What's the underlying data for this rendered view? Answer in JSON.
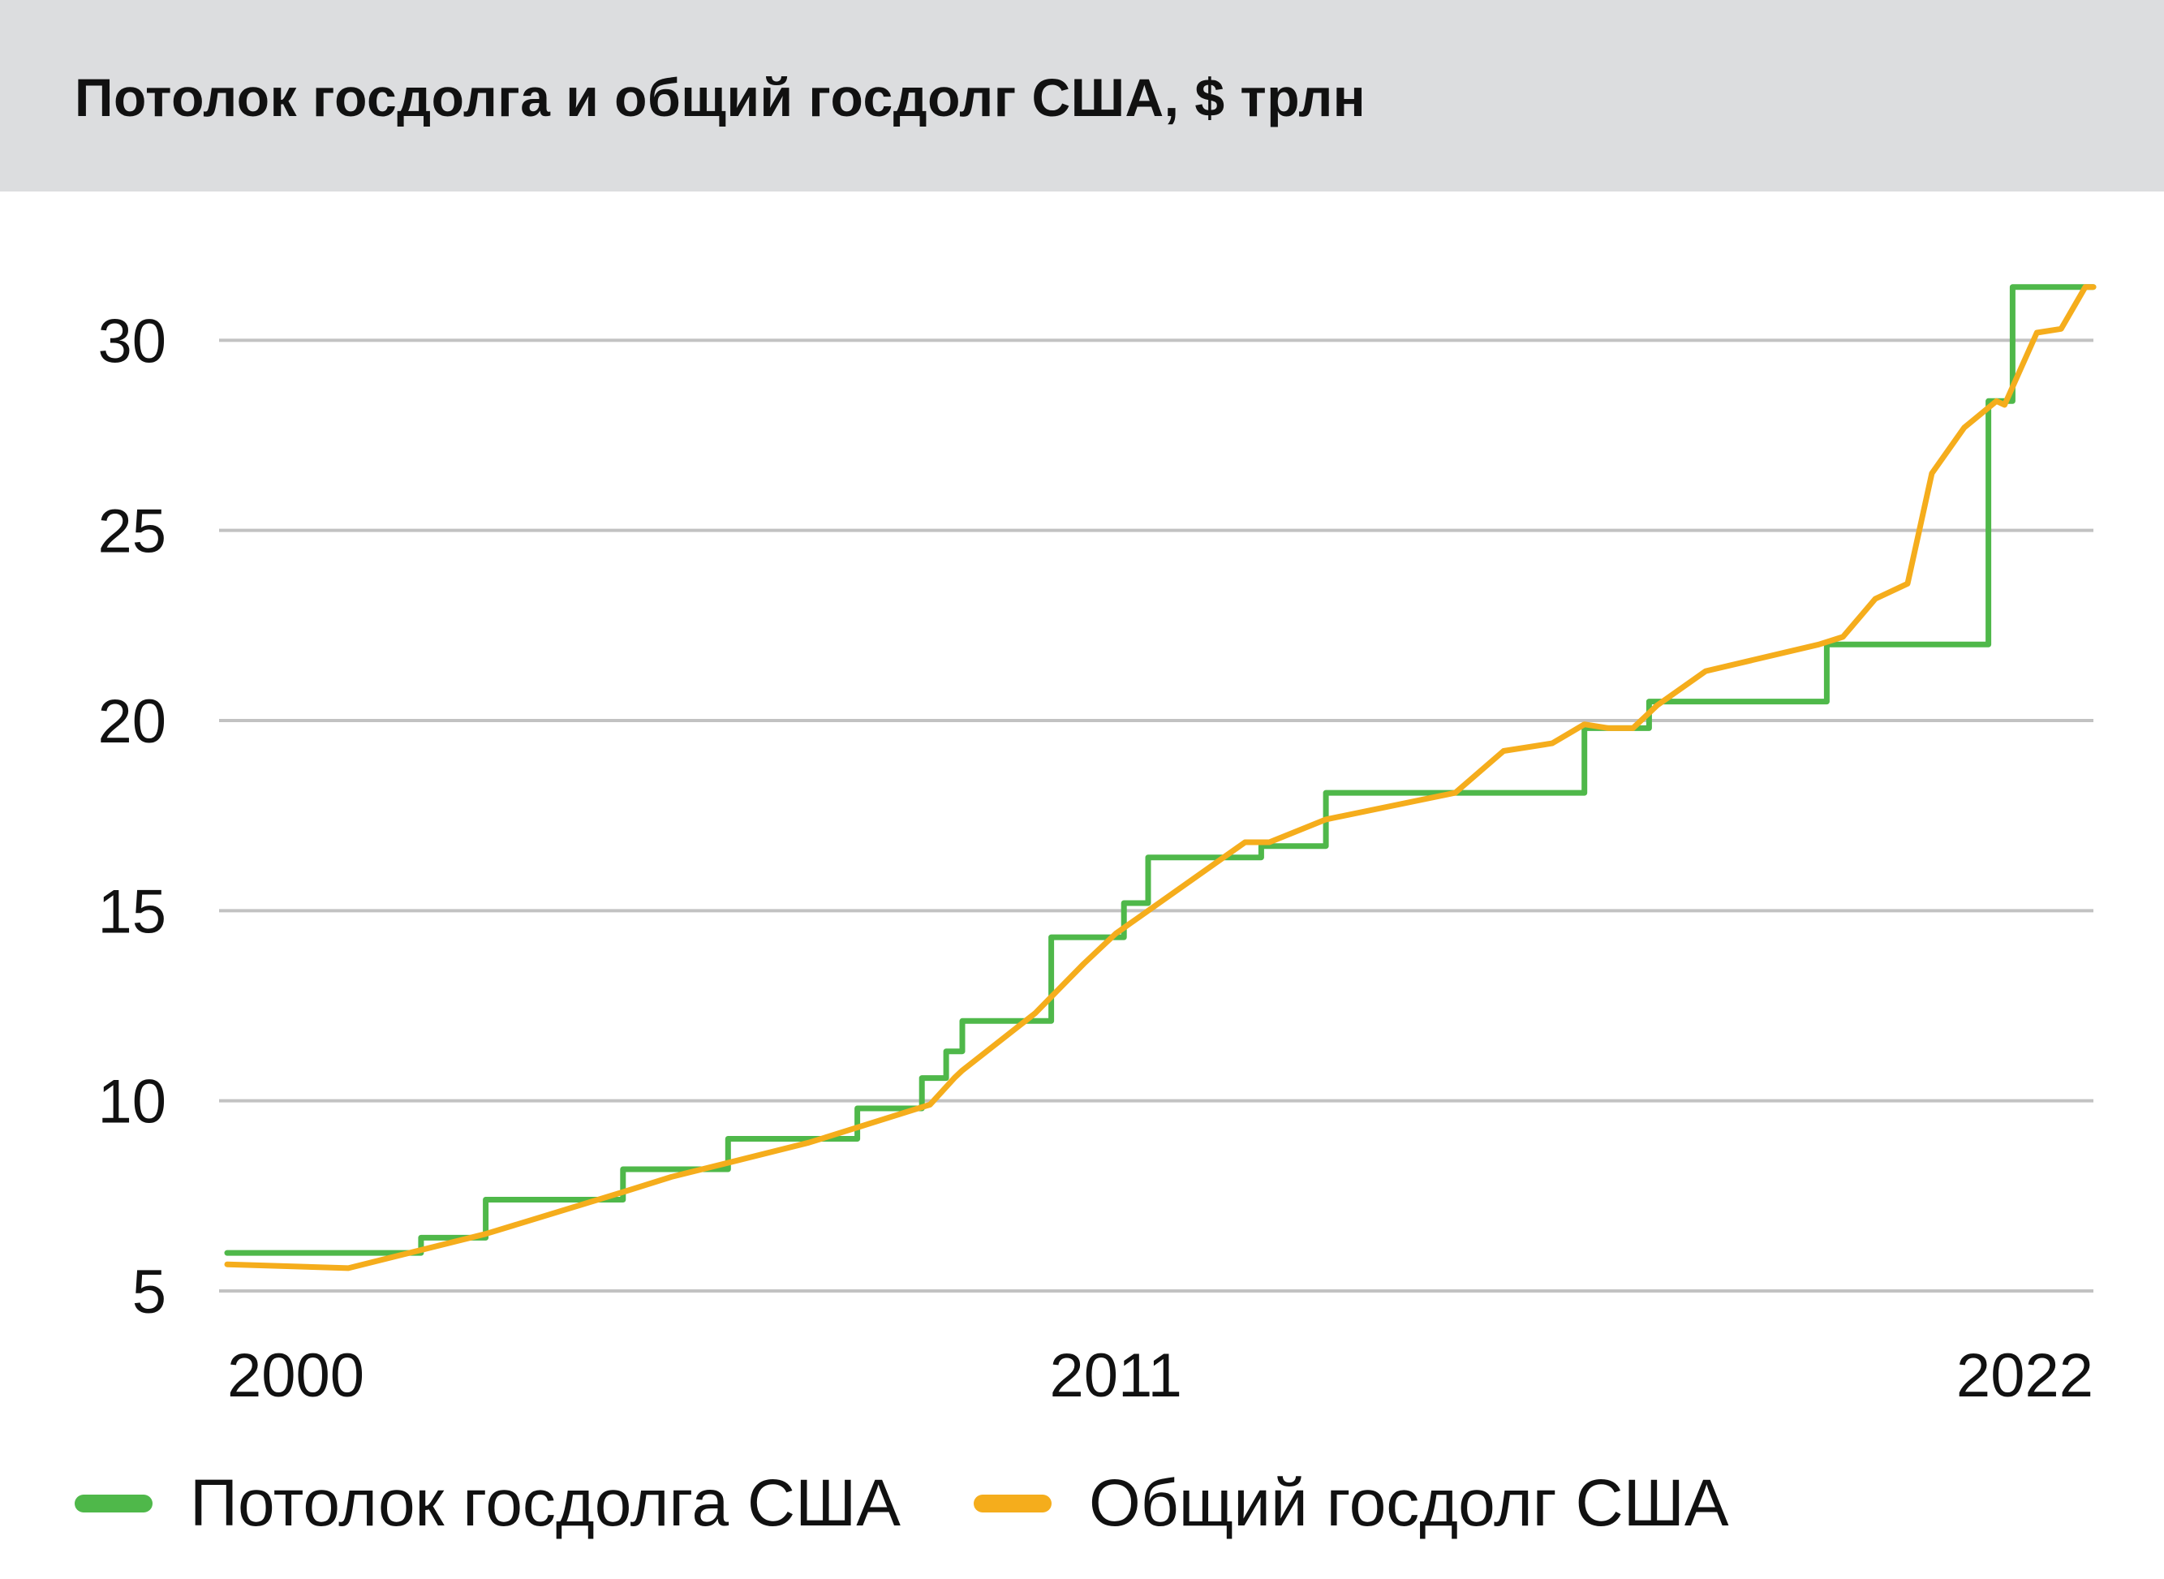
{
  "title": "Потолок госдолга и общий госдолг США, $ трлн",
  "colors": {
    "ceiling": "#4fb84a",
    "debt": "#f5ad1c",
    "grid": "#c2c2c2",
    "header_bg": "#dcdddf"
  },
  "legend": [
    {
      "label": "Потолок госдолга США",
      "color": "#4fb84a"
    },
    {
      "label": "Общий госдолг США",
      "color": "#f5ad1c"
    }
  ],
  "chart_data": {
    "type": "line",
    "title": "Потолок госдолга и общий госдолг США, $ трлн",
    "xlabel": "",
    "ylabel": "",
    "xlim": [
      1999.9,
      2023.1
    ],
    "ylim": [
      5,
      31.8
    ],
    "grid": true,
    "legend_position": "bottom",
    "x_ticks": [
      {
        "value": 2000,
        "label": "2000"
      },
      {
        "value": 2011,
        "label": "2011"
      },
      {
        "value": 2022,
        "label": "2022"
      }
    ],
    "y_ticks": [
      {
        "value": 5,
        "label": "5"
      },
      {
        "value": 10,
        "label": "10"
      },
      {
        "value": 15,
        "label": "15"
      },
      {
        "value": 20,
        "label": "20"
      },
      {
        "value": 25,
        "label": "25"
      },
      {
        "value": 30,
        "label": "30"
      }
    ],
    "series": [
      {
        "name": "Потолок госдолга США",
        "kind": "step",
        "color": "#4fb84a",
        "x": [
          2000,
          2002.4,
          2003.2,
          2004.9,
          2006.2,
          2007.8,
          2008.6,
          2008.9,
          2009.1,
          2010.2,
          2011.1,
          2011.4,
          2012.8,
          2013.6,
          2016.8,
          2017.6,
          2019.8,
          2021.8,
          2022.1,
          2023.1
        ],
        "y": [
          6.0,
          6.4,
          7.4,
          8.2,
          9.0,
          9.8,
          10.6,
          11.3,
          12.1,
          14.3,
          15.2,
          16.4,
          16.7,
          18.1,
          19.8,
          20.5,
          22.0,
          28.4,
          31.4,
          31.4
        ]
      },
      {
        "name": "Общий госдолг США",
        "kind": "line",
        "color": "#f5ad1c",
        "x": [
          2000,
          2001.5,
          2003.2,
          2004.9,
          2005.5,
          2007.2,
          2008.7,
          2009.0,
          2009.1,
          2010.0,
          2010.6,
          2011.0,
          2012.6,
          2012.9,
          2013.6,
          2015.2,
          2015.8,
          2016.4,
          2016.8,
          2017.1,
          2017.4,
          2017.7,
          2018.3,
          2019.7,
          2020.0,
          2020.4,
          2020.8,
          2021.1,
          2021.5,
          2021.9,
          2022.0,
          2022.4,
          2022.7,
          2023.0,
          2023.1
        ],
        "y": [
          5.7,
          5.6,
          6.5,
          7.6,
          8.0,
          8.9,
          9.9,
          10.6,
          10.8,
          12.3,
          13.6,
          14.4,
          16.8,
          16.8,
          17.4,
          18.1,
          19.2,
          19.4,
          19.9,
          19.8,
          19.8,
          20.4,
          21.3,
          22.0,
          22.2,
          23.2,
          23.6,
          26.5,
          27.7,
          28.4,
          28.3,
          30.2,
          30.3,
          31.4,
          31.4
        ]
      }
    ]
  }
}
